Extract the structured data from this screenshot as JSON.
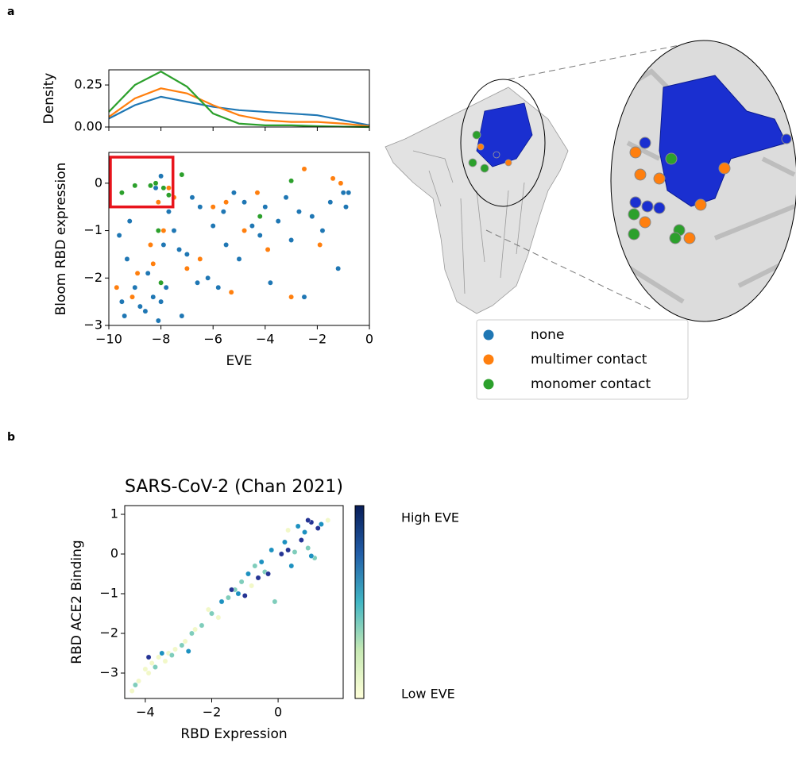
{
  "panel_labels": [
    "a",
    "b"
  ],
  "chart_data": [
    {
      "type": "line",
      "ylabel": "Density",
      "xlim": [
        -10,
        0
      ],
      "ylim": [
        0,
        0.34
      ],
      "yticks": [
        {
          "value": 0,
          "label": "0.00"
        },
        {
          "value": 0.25,
          "label": "0.25"
        }
      ],
      "x": [
        -10,
        -9,
        -8,
        -7,
        -6,
        -5,
        -4,
        -3,
        -2,
        -1,
        0
      ],
      "series": [
        {
          "color": "#1f77b4",
          "values": [
            0.05,
            0.13,
            0.18,
            0.15,
            0.12,
            0.1,
            0.09,
            0.08,
            0.07,
            0.04,
            0.01
          ]
        },
        {
          "color": "#ff7f0e",
          "values": [
            0.06,
            0.17,
            0.23,
            0.2,
            0.13,
            0.07,
            0.04,
            0.03,
            0.03,
            0.02,
            0.005
          ]
        },
        {
          "color": "#2ca02c",
          "values": [
            0.09,
            0.25,
            0.33,
            0.24,
            0.08,
            0.02,
            0.01,
            0.01,
            0.005,
            0.002,
            0
          ]
        }
      ]
    },
    {
      "type": "scatter",
      "xlabel": "EVE",
      "ylabel": "Bloom RBD expression",
      "xlim": [
        -10,
        0
      ],
      "ylim": [
        -3.0,
        0.65
      ],
      "xticks": [
        {
          "value": -10,
          "label": "−10"
        },
        {
          "value": -8,
          "label": "−8"
        },
        {
          "value": -6,
          "label": "−6"
        },
        {
          "value": -4,
          "label": "−4"
        },
        {
          "value": -2,
          "label": "−2"
        },
        0
      ],
      "yticks": [
        {
          "value": -3,
          "label": "−3"
        },
        {
          "value": -2,
          "label": "−2"
        },
        {
          "value": -1,
          "label": "−1"
        },
        0
      ],
      "highlight_box": {
        "xlim": [
          -10,
          -7.6
        ],
        "ylim": [
          -0.5,
          0.55
        ],
        "color": "#e8141c"
      },
      "series": [
        {
          "name": "none",
          "color": "#1f77b4",
          "x": [
            -9.6,
            -9.5,
            -9.4,
            -9.3,
            -9,
            -8.8,
            -8.6,
            -8.5,
            -8.3,
            -8.1,
            -8,
            -7.9,
            -7.8,
            -8.2,
            -8,
            -7.7,
            -7.5,
            -7.3,
            -7,
            -6.8,
            -6.5,
            -6.2,
            -6,
            -5.8,
            -5.5,
            -5.2,
            -5,
            -4.8,
            -4.5,
            -4.2,
            -4,
            -3.8,
            -3.5,
            -3.2,
            -3,
            -2.7,
            -2.5,
            -2.2,
            -1.8,
            -1.5,
            -1.2,
            -1,
            -0.8,
            -0.9,
            -7.2,
            -6.6,
            -9.2,
            -5.6
          ],
          "values": [
            -1.1,
            -2.5,
            -2.8,
            -1.6,
            -2.2,
            -2.6,
            -2.7,
            -1.9,
            -2.4,
            -2.9,
            -2.5,
            -1.3,
            -2.2,
            -0.1,
            0.15,
            -0.6,
            -1.0,
            -1.4,
            -1.5,
            -0.3,
            -0.5,
            -2.0,
            -0.9,
            -2.2,
            -1.3,
            -0.2,
            -1.6,
            -0.4,
            -0.9,
            -1.1,
            -0.5,
            -2.1,
            -0.8,
            -0.3,
            -1.2,
            -0.6,
            -2.4,
            -0.7,
            -1.0,
            -0.4,
            -1.8,
            -0.2,
            -0.2,
            -0.5,
            -2.8,
            -2.1,
            -0.8,
            -0.6
          ]
        },
        {
          "name": "multimer contact",
          "color": "#ff7f0e",
          "x": [
            -9.7,
            -9.1,
            -8.4,
            -8.3,
            -8.1,
            -7.7,
            -7.5,
            -7,
            -6.5,
            -6,
            -5.5,
            -5.3,
            -4.8,
            -4.3,
            -3.9,
            -3,
            -2.5,
            -1.9,
            -1.4,
            -1.1,
            -7.9,
            -8.9
          ],
          "values": [
            -2.2,
            -2.4,
            -1.3,
            -1.7,
            -0.4,
            -0.1,
            -0.3,
            -1.8,
            -1.6,
            -0.5,
            -0.4,
            -2.3,
            -1.0,
            -0.2,
            -1.4,
            -2.4,
            0.3,
            -1.3,
            0.1,
            0.0,
            -1.0,
            -1.9
          ]
        },
        {
          "name": "monomer contact",
          "color": "#2ca02c",
          "x": [
            -9.5,
            -9,
            -8.4,
            -8.2,
            -7.9,
            -7.7,
            -7.2,
            -8.1,
            -8,
            -4.2,
            -3
          ],
          "values": [
            -0.2,
            -0.05,
            -0.05,
            0.0,
            -0.1,
            -0.25,
            0.18,
            -1.0,
            -2.1,
            -0.7,
            0.05
          ]
        }
      ]
    },
    {
      "type": "scatter",
      "title": "SARS-CoV-2 (Chan 2021)",
      "xlabel": "RBD Expression",
      "ylabel": "RBD ACE2 Binding",
      "xlim": [
        -4.62,
        1.96
      ],
      "ylim": [
        -3.64,
        1.22
      ],
      "xticks": [
        {
          "value": -4,
          "label": "−4"
        },
        {
          "value": -2,
          "label": "−2"
        },
        0
      ],
      "yticks": [
        {
          "value": -3,
          "label": "−3"
        },
        {
          "value": -2,
          "label": "−2"
        },
        {
          "value": -1,
          "label": "−1"
        },
        0,
        1
      ],
      "colorbar_labels": [
        "High EVE",
        "Low EVE"
      ],
      "colormap": [
        "#081d58",
        "#225ea8",
        "#41b6c4",
        "#c7e9b4",
        "#ffffd9"
      ],
      "series": [
        {
          "color": "#f2f8c8",
          "x": [
            -4.4,
            -4.2,
            -4.0,
            -3.8,
            -3.6,
            -3.4,
            -3.1,
            -2.8,
            -2.5,
            -2.1,
            -1.8,
            -0.8,
            0.3,
            1.5,
            -3.9,
            -3.3
          ],
          "values": [
            -3.45,
            -3.2,
            -2.9,
            -2.75,
            -2.6,
            -2.7,
            -2.4,
            -2.2,
            -1.9,
            -1.4,
            -1.6,
            -0.8,
            0.6,
            0.85,
            -3.0,
            -2.5
          ]
        },
        {
          "color": "#7fcdbb",
          "x": [
            -4.3,
            -3.7,
            -3.2,
            -2.9,
            -2.3,
            -2.0,
            -1.5,
            -1.1,
            -0.7,
            -0.4,
            -0.1,
            0.5,
            0.9,
            1.1,
            -2.6,
            -1.3
          ],
          "values": [
            -3.3,
            -2.85,
            -2.55,
            -2.3,
            -1.8,
            -1.5,
            -1.1,
            -0.7,
            -0.3,
            -0.45,
            -1.2,
            0.05,
            0.15,
            -0.1,
            -2.0,
            -0.9
          ]
        },
        {
          "color": "#1d91c0",
          "x": [
            -3.5,
            -2.7,
            -1.7,
            -1.2,
            -0.9,
            -0.5,
            -0.2,
            0.2,
            0.6,
            0.8,
            1.0,
            1.3,
            0.4
          ],
          "values": [
            -2.5,
            -2.45,
            -1.2,
            -1.0,
            -0.5,
            -0.2,
            0.1,
            0.3,
            0.7,
            0.55,
            -0.05,
            0.75,
            -0.3
          ]
        },
        {
          "color": "#253494",
          "x": [
            -3.9,
            -1.4,
            -0.6,
            -0.3,
            0.1,
            0.3,
            0.7,
            1.0,
            1.2,
            -1.0,
            0.9
          ],
          "values": [
            -2.6,
            -0.9,
            -0.6,
            -0.5,
            0.0,
            0.1,
            0.35,
            0.8,
            0.65,
            -1.05,
            0.85
          ]
        }
      ]
    }
  ]
}
